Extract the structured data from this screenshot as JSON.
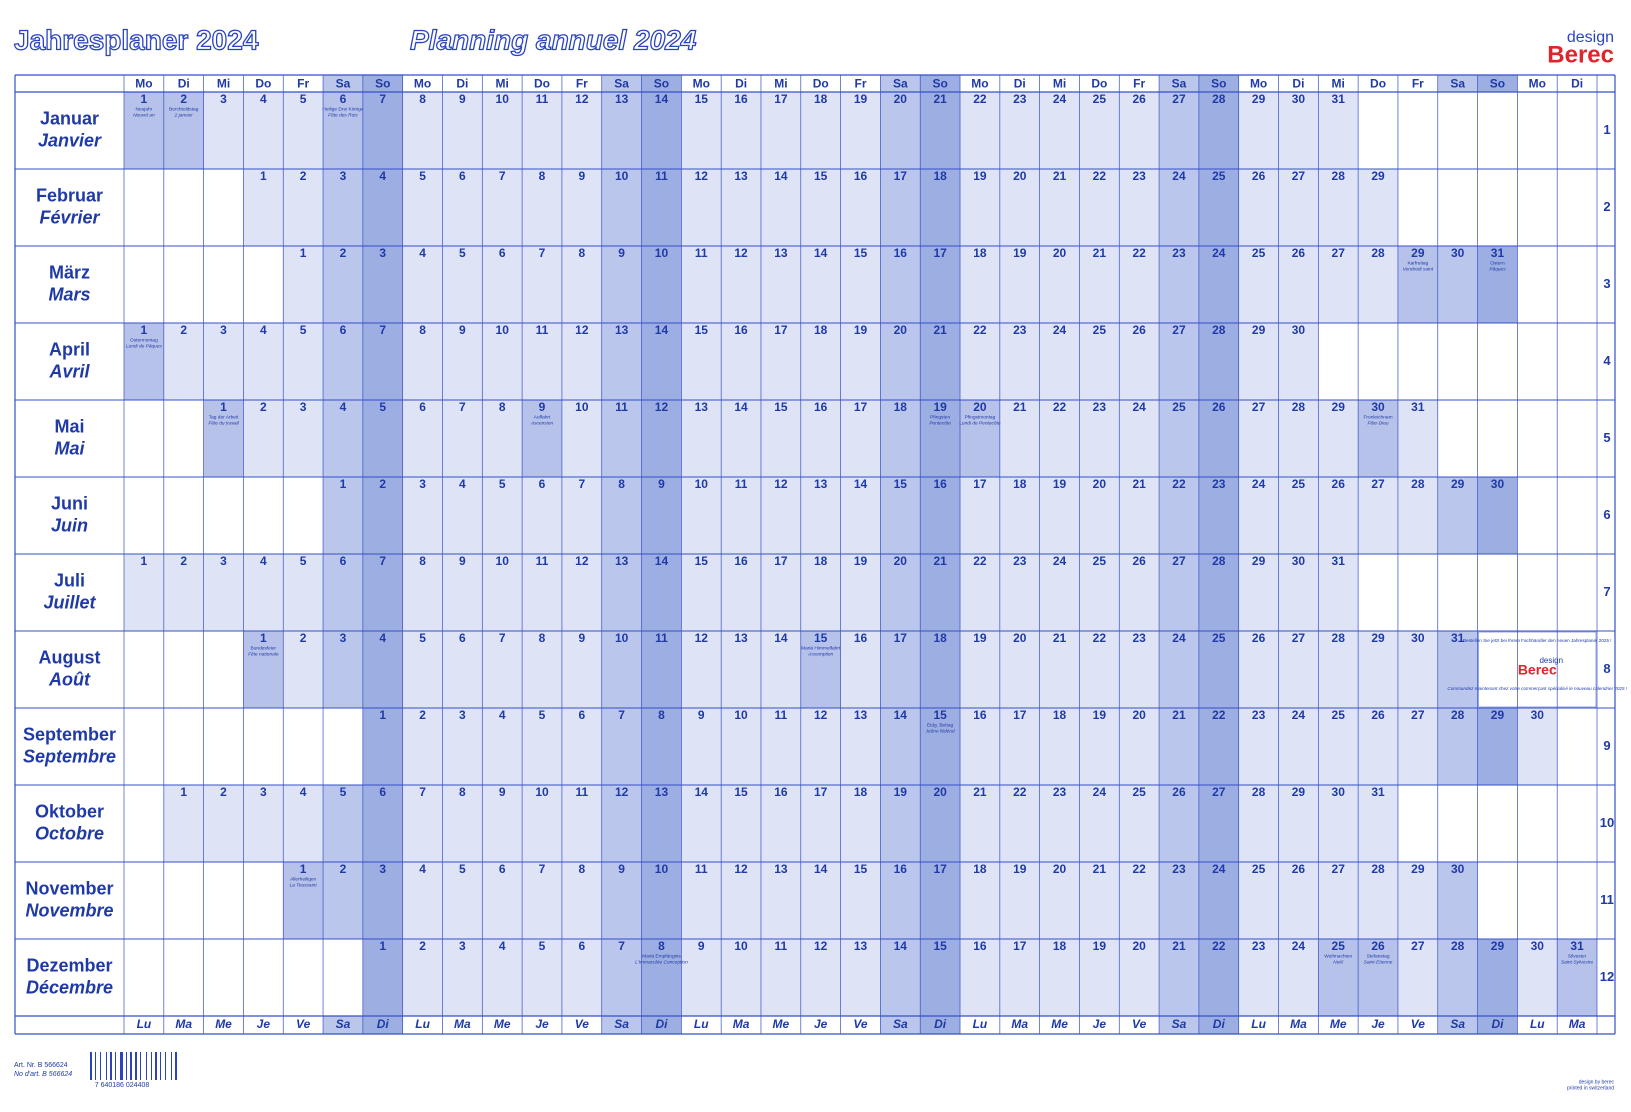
{
  "header": {
    "title_de": "Jahresplaner 2024",
    "title_fr": "Planning annuel 2024",
    "brand_small": "design",
    "brand": "Berec"
  },
  "weekdays_de": [
    "Mo",
    "Di",
    "Mi",
    "Do",
    "Fr",
    "Sa",
    "So",
    "Mo",
    "Di",
    "Mi",
    "Do",
    "Fr",
    "Sa",
    "So",
    "Mo",
    "Di",
    "Mi",
    "Do",
    "Fr",
    "Sa",
    "So",
    "Mo",
    "Di",
    "Mi",
    "Do",
    "Fr",
    "Sa",
    "So",
    "Mo",
    "Di",
    "Mi",
    "Do",
    "Fr",
    "Sa",
    "So",
    "Mo",
    "Di"
  ],
  "weekdays_fr": [
    "Lu",
    "Ma",
    "Me",
    "Je",
    "Ve",
    "Sa",
    "Di",
    "Lu",
    "Ma",
    "Me",
    "Je",
    "Ve",
    "Sa",
    "Di",
    "Lu",
    "Ma",
    "Me",
    "Je",
    "Ve",
    "Sa",
    "Di",
    "Lu",
    "Ma",
    "Me",
    "Je",
    "Ve",
    "Sa",
    "Di",
    "Lu",
    "Ma",
    "Me",
    "Je",
    "Ve",
    "Sa",
    "Di",
    "Lu",
    "Ma"
  ],
  "months": [
    {
      "de": "Januar",
      "fr": "Janvier",
      "number": 1,
      "cells": [
        1,
        2,
        3,
        4,
        5,
        6,
        7,
        8,
        9,
        10,
        11,
        12,
        13,
        14,
        15,
        16,
        17,
        18,
        19,
        20,
        21,
        22,
        23,
        24,
        25,
        26,
        27,
        28,
        29,
        30,
        31,
        null,
        null,
        null,
        null,
        null,
        null
      ],
      "holidays": [
        {
          "day": 1,
          "de": "Neujahr",
          "fr": "Nouvel an"
        },
        {
          "day": 2,
          "de": "Berchtoldstag",
          "fr": "2 janvier"
        },
        {
          "day": 6,
          "de": "Heilige Drei Könige",
          "fr": "Fête des Rois"
        }
      ]
    },
    {
      "de": "Februar",
      "fr": "Février",
      "number": 2,
      "cells": [
        null,
        null,
        null,
        1,
        2,
        3,
        4,
        5,
        6,
        7,
        8,
        9,
        10,
        11,
        12,
        13,
        14,
        15,
        16,
        17,
        18,
        19,
        20,
        21,
        22,
        23,
        24,
        25,
        26,
        27,
        28,
        29,
        null,
        null,
        null,
        null,
        null
      ],
      "holidays": []
    },
    {
      "de": "März",
      "fr": "Mars",
      "number": 3,
      "cells": [
        null,
        null,
        null,
        null,
        1,
        2,
        3,
        4,
        5,
        6,
        7,
        8,
        9,
        10,
        11,
        12,
        13,
        14,
        15,
        16,
        17,
        18,
        19,
        20,
        21,
        22,
        23,
        24,
        25,
        26,
        27,
        28,
        29,
        30,
        31,
        null,
        null
      ],
      "holidays": [
        {
          "day": 29,
          "de": "Karfreitag",
          "fr": "Vendredi saint"
        },
        {
          "day": 31,
          "de": "Ostern",
          "fr": "Pâques"
        }
      ]
    },
    {
      "de": "April",
      "fr": "Avril",
      "number": 4,
      "cells": [
        1,
        2,
        3,
        4,
        5,
        6,
        7,
        8,
        9,
        10,
        11,
        12,
        13,
        14,
        15,
        16,
        17,
        18,
        19,
        20,
        21,
        22,
        23,
        24,
        25,
        26,
        27,
        28,
        29,
        30,
        null,
        null,
        null,
        null,
        null,
        null,
        null
      ],
      "holidays": [
        {
          "day": 1,
          "de": "Ostermontag",
          "fr": "Lundi de Pâques"
        }
      ]
    },
    {
      "de": "Mai",
      "fr": "Mai",
      "number": 5,
      "cells": [
        null,
        null,
        1,
        2,
        3,
        4,
        5,
        6,
        7,
        8,
        9,
        10,
        11,
        12,
        13,
        14,
        15,
        16,
        17,
        18,
        19,
        20,
        21,
        22,
        23,
        24,
        25,
        26,
        27,
        28,
        29,
        30,
        31,
        null,
        null,
        null,
        null
      ],
      "holidays": [
        {
          "day": 1,
          "de": "Tag der Arbeit",
          "fr": "Fête du travail"
        },
        {
          "day": 9,
          "de": "Auffahrt",
          "fr": "Ascension"
        },
        {
          "day": 19,
          "de": "Pfingsten",
          "fr": "Pentecôte"
        },
        {
          "day": 20,
          "de": "Pfingstmontag",
          "fr": "Lundi de Pentecôte"
        },
        {
          "day": 30,
          "de": "Fronleichnam",
          "fr": "Fête-Dieu"
        }
      ]
    },
    {
      "de": "Juni",
      "fr": "Juin",
      "number": 6,
      "cells": [
        null,
        null,
        null,
        null,
        null,
        1,
        2,
        3,
        4,
        5,
        6,
        7,
        8,
        9,
        10,
        11,
        12,
        13,
        14,
        15,
        16,
        17,
        18,
        19,
        20,
        21,
        22,
        23,
        24,
        25,
        26,
        27,
        28,
        29,
        30,
        null,
        null
      ],
      "holidays": []
    },
    {
      "de": "Juli",
      "fr": "Juillet",
      "number": 7,
      "cells": [
        1,
        2,
        3,
        4,
        5,
        6,
        7,
        8,
        9,
        10,
        11,
        12,
        13,
        14,
        15,
        16,
        17,
        18,
        19,
        20,
        21,
        22,
        23,
        24,
        25,
        26,
        27,
        28,
        29,
        30,
        31,
        null,
        null,
        null,
        null,
        null,
        null
      ],
      "holidays": []
    },
    {
      "de": "August",
      "fr": "Août",
      "number": 8,
      "cells": [
        null,
        null,
        null,
        1,
        2,
        3,
        4,
        5,
        6,
        7,
        8,
        9,
        10,
        11,
        12,
        13,
        14,
        15,
        16,
        17,
        18,
        19,
        20,
        21,
        22,
        23,
        24,
        25,
        26,
        27,
        28,
        29,
        30,
        31,
        null,
        null,
        null
      ],
      "holidays": [
        {
          "day": 1,
          "de": "Bundesfeier",
          "fr": "Fête nationale"
        },
        {
          "day": 15,
          "de": "Mariä Himmelfahrt",
          "fr": "Assomption"
        }
      ]
    },
    {
      "de": "September",
      "fr": "Septembre",
      "number": 9,
      "cells": [
        null,
        null,
        null,
        null,
        null,
        null,
        1,
        2,
        3,
        4,
        5,
        6,
        7,
        8,
        9,
        10,
        11,
        12,
        13,
        14,
        15,
        16,
        17,
        18,
        19,
        20,
        21,
        22,
        23,
        24,
        25,
        26,
        27,
        28,
        29,
        30,
        null
      ],
      "holidays": [
        {
          "day": 15,
          "de": "Eidg. Bettag",
          "fr": "Jeûne fédéral"
        }
      ]
    },
    {
      "de": "Oktober",
      "fr": "Octobre",
      "number": 10,
      "cells": [
        null,
        1,
        2,
        3,
        4,
        5,
        6,
        7,
        8,
        9,
        10,
        11,
        12,
        13,
        14,
        15,
        16,
        17,
        18,
        19,
        20,
        21,
        22,
        23,
        24,
        25,
        26,
        27,
        28,
        29,
        30,
        31,
        null,
        null,
        null,
        null,
        null
      ],
      "holidays": []
    },
    {
      "de": "November",
      "fr": "Novembre",
      "number": 11,
      "cells": [
        null,
        null,
        null,
        null,
        1,
        2,
        3,
        4,
        5,
        6,
        7,
        8,
        9,
        10,
        11,
        12,
        13,
        14,
        15,
        16,
        17,
        18,
        19,
        20,
        21,
        22,
        23,
        24,
        25,
        26,
        27,
        28,
        29,
        30,
        null,
        null,
        null
      ],
      "holidays": [
        {
          "day": 1,
          "de": "Allerheiligen",
          "fr": "La Toussaint"
        }
      ]
    },
    {
      "de": "Dezember",
      "fr": "Décembre",
      "number": 12,
      "cells": [
        null,
        null,
        null,
        null,
        null,
        null,
        1,
        2,
        3,
        4,
        5,
        6,
        7,
        8,
        9,
        10,
        11,
        12,
        13,
        14,
        15,
        16,
        17,
        18,
        19,
        20,
        21,
        22,
        23,
        24,
        25,
        26,
        27,
        28,
        29,
        30,
        31
      ],
      "holidays": [
        {
          "day": 8,
          "de": "Mariä Empfängnis",
          "fr": "L'Immaculée Conception"
        },
        {
          "day": 25,
          "de": "Weihnachten",
          "fr": "Noël"
        },
        {
          "day": 26,
          "de": "Stefanstag",
          "fr": "Saint-Etienne"
        },
        {
          "day": 31,
          "de": "Silvester",
          "fr": "Saint-Sylvestre"
        }
      ]
    }
  ],
  "promo": {
    "de": "Bestellen Sie jetzt bei Ihrem Fachhändler den neuen Jahresplaner 2025 !",
    "brand_small": "design",
    "brand": "Berec",
    "fr": "Commandez maintenant chez votre commerçant spécialisé le nouveau calendrier 2025 !"
  },
  "footer": {
    "art_de": "Art. Nr. B 566624",
    "art_fr": "No d'art. B 566624",
    "barcode": "7 640186 024408",
    "credit": "design by berec",
    "printed": "printed in switzerland"
  }
}
